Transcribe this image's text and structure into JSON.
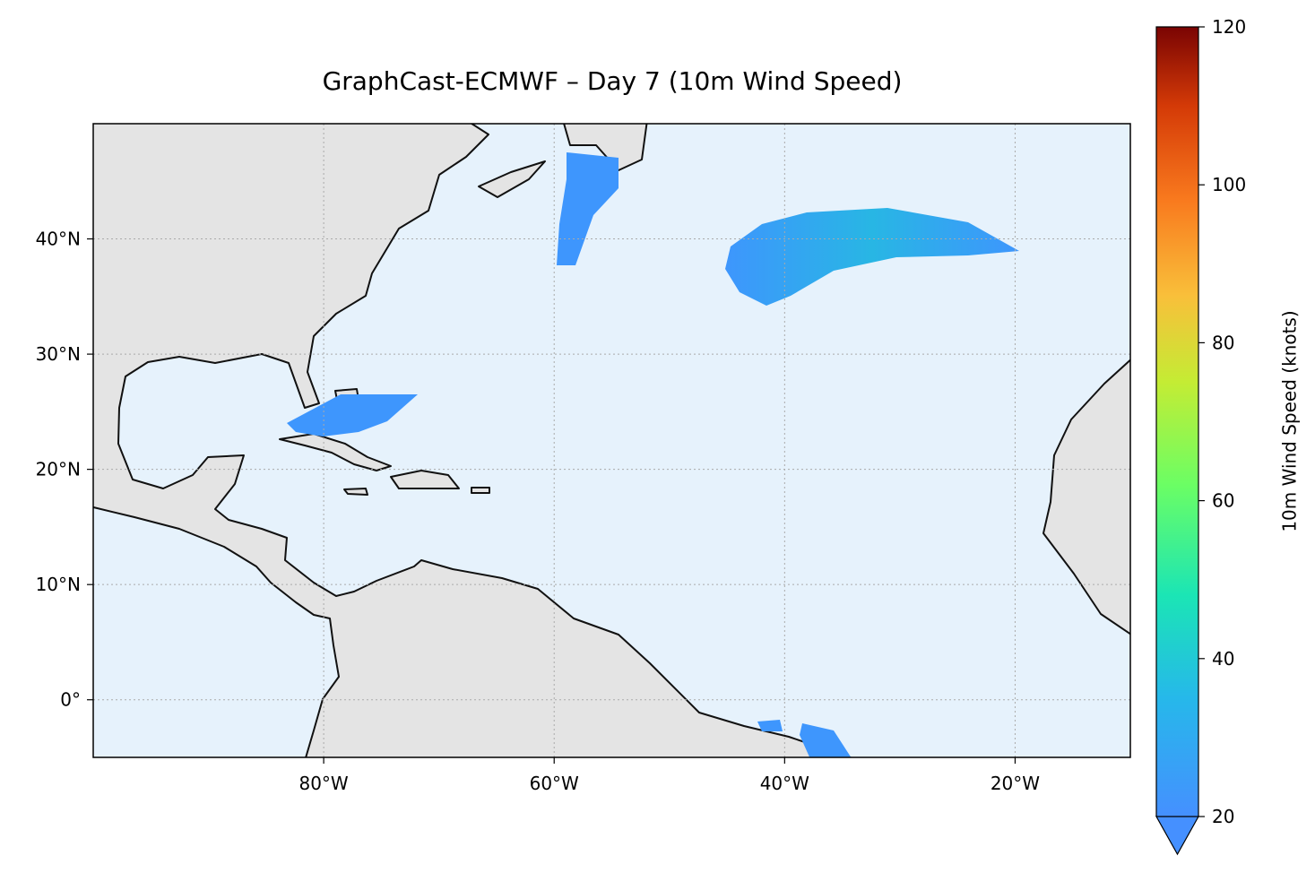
{
  "chart_data": {
    "type": "map",
    "title": "GraphCast-ECMWF – Day 7 (10m Wind Speed)",
    "xlim": [
      -100,
      -10
    ],
    "ylim": [
      -5,
      50
    ],
    "xticks": [
      {
        "value": -80,
        "label": "80°W"
      },
      {
        "value": -60,
        "label": "60°W"
      },
      {
        "value": -40,
        "label": "40°W"
      },
      {
        "value": -20,
        "label": "20°W"
      }
    ],
    "yticks": [
      {
        "value": 0,
        "label": "0°"
      },
      {
        "value": 10,
        "label": "10°N"
      },
      {
        "value": 20,
        "label": "20°N"
      },
      {
        "value": 30,
        "label": "30°N"
      },
      {
        "value": 40,
        "label": "40°N"
      }
    ],
    "grid": true,
    "colorbar": {
      "label": "10m Wind Speed (knots)",
      "lim": [
        20,
        120
      ],
      "ticks": [
        20,
        40,
        60,
        80,
        100,
        120
      ]
    }
  }
}
